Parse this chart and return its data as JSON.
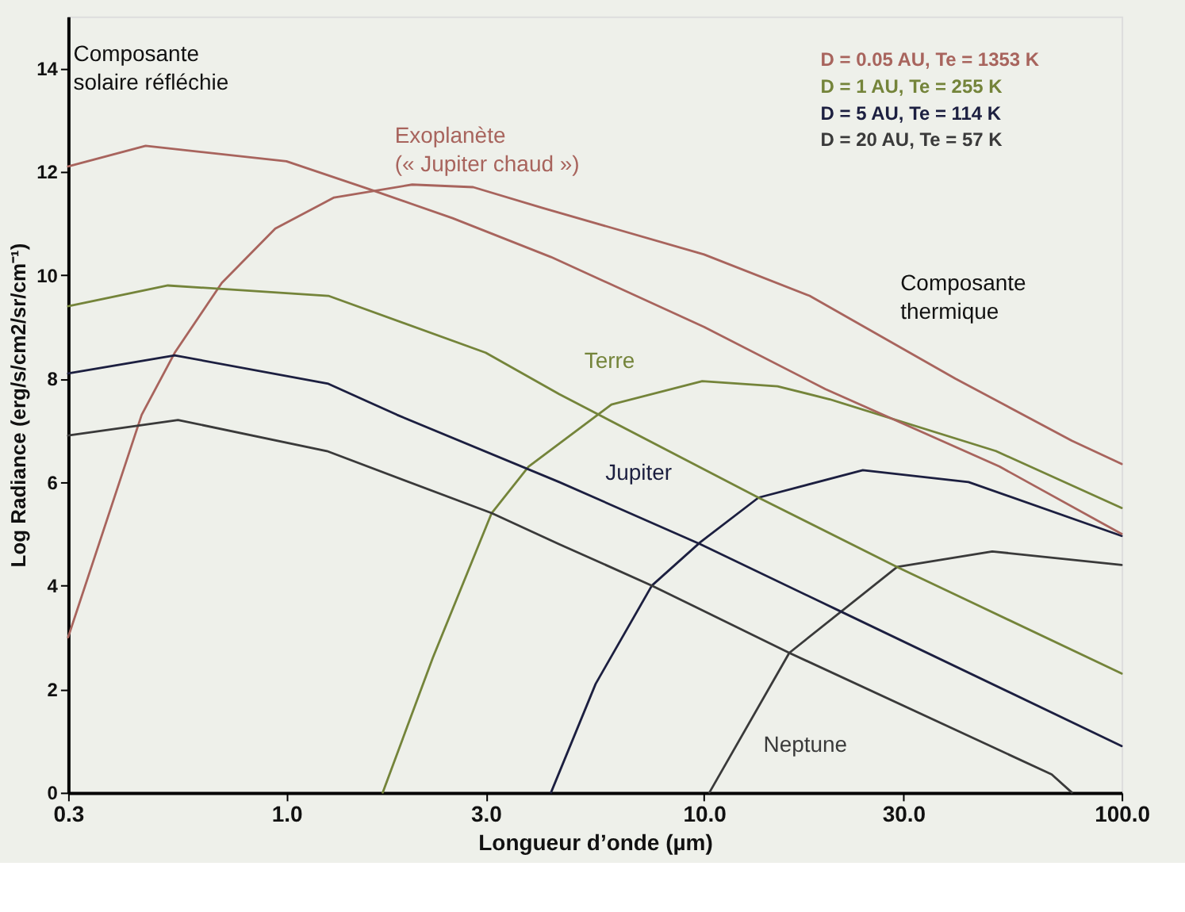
{
  "chart_data": {
    "type": "line",
    "xlabel": "Longueur d’onde (µm)",
    "ylabel": "Log Radiance (erg/s/cm2/sr/cm⁻¹)",
    "log": "x",
    "xlim": [
      0.3,
      100
    ],
    "xticks": [
      0.3,
      {
        "value": 1,
        "label": "1.0"
      },
      {
        "value": 3,
        "label": "3.0"
      },
      {
        "value": 10,
        "label": "10.0"
      },
      {
        "value": 30,
        "label": "30.0"
      },
      {
        "value": 100,
        "label": "100.0"
      }
    ],
    "ylim": [
      0,
      15
    ],
    "yticks": [
      0,
      2,
      4,
      6,
      8,
      10,
      12,
      14
    ],
    "grid": false,
    "legend": "top right",
    "marker": "none",
    "line_style": "solid",
    "series": [
      {
        "name": "D = 0.05 AU, Te = 1353 K",
        "color": "#a8645d",
        "x": [
          0.3,
          0.45,
          0.54,
          0.7,
          0.94,
          1.3,
          2.0,
          2.8,
          4.1,
          10,
          17.9,
          40,
          76,
          100
        ],
        "values": [
          3.0,
          7.3,
          8.5,
          9.85,
          10.9,
          11.5,
          11.75,
          11.7,
          11.3,
          10.4,
          9.6,
          8.0,
          6.8,
          6.35
        ]
      },
      {
        "name": "D = 1 AU, Te = 255 K",
        "color": "#74843a",
        "x": [
          1.7,
          2.24,
          3.1,
          3.8,
          4.6,
          6,
          9.9,
          15,
          20,
          50,
          100
        ],
        "values": [
          0,
          2.6,
          5.4,
          6.3,
          6.8,
          7.5,
          7.95,
          7.85,
          7.6,
          6.6,
          5.5
        ]
      },
      {
        "name": "D = 5 AU, Te = 114 K",
        "color": "#1c1f40",
        "x": [
          4.3,
          5.5,
          7.5,
          9.8,
          13.5,
          24,
          43,
          100
        ],
        "values": [
          0,
          2.1,
          4.0,
          4.84,
          5.7,
          6.23,
          6.0,
          4.96
        ]
      },
      {
        "name": "D = 20 AU, Te = 57 K",
        "color": "#3a3a3a",
        "x": [
          10.3,
          16,
          29,
          49,
          100
        ],
        "values": [
          0,
          2.7,
          4.36,
          4.66,
          4.4
        ]
      },
      {
        "color": "#a8645d",
        "x": [
          0.3,
          0.46,
          1.0,
          1.58,
          2.5,
          4.3,
          10,
          19.5,
          51,
          100
        ],
        "values": [
          12.1,
          12.5,
          12.2,
          11.66,
          11.1,
          10.35,
          9.0,
          7.8,
          6.3,
          5.0
        ]
      },
      {
        "color": "#74843a",
        "x": [
          0.3,
          0.52,
          1.26,
          3.0,
          4.5,
          13.5,
          29,
          100
        ],
        "values": [
          9.4,
          9.8,
          9.6,
          8.5,
          7.7,
          5.7,
          4.36,
          2.3
        ]
      },
      {
        "color": "#1c1f40",
        "x": [
          0.3,
          0.54,
          1.26,
          1.84,
          4.5,
          9.8,
          20.5,
          100
        ],
        "values": [
          8.1,
          8.45,
          7.9,
          7.3,
          6.0,
          4.8,
          3.56,
          0.9
        ]
      },
      {
        "color": "#3a3a3a",
        "x": [
          0.3,
          0.55,
          1.25,
          3.1,
          4.5,
          7.5,
          16,
          68,
          76
        ],
        "values": [
          6.9,
          7.2,
          6.6,
          5.4,
          4.8,
          4.0,
          2.7,
          0.35,
          0
        ]
      }
    ],
    "annotations": [
      "Composante\nsolaire réfléchie",
      "Exoplanète\n(« Jupiter chaud »)",
      "Terre",
      "Jupiter",
      "Neptune",
      "Composante\nthermique"
    ]
  }
}
